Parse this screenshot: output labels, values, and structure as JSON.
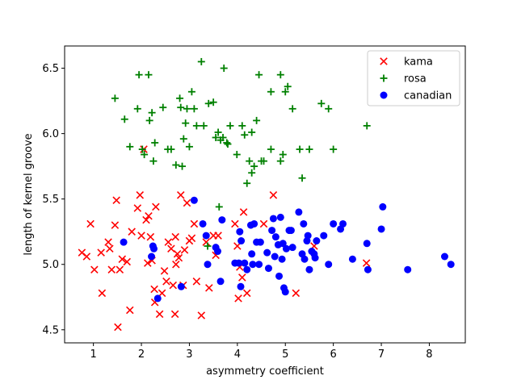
{
  "chart_data": {
    "type": "scatter",
    "title": "",
    "xlabel": "asymmetry coefficient",
    "ylabel": "length of kernel groove",
    "xlim": [
      0.4,
      8.75
    ],
    "ylim": [
      4.4,
      6.67
    ],
    "x_ticks": [
      1,
      2,
      3,
      4,
      5,
      6,
      7,
      8
    ],
    "y_ticks": [
      4.5,
      5.0,
      5.5,
      6.0,
      6.5
    ],
    "grid": false,
    "legend_position": "top-right",
    "series": [
      {
        "name": "kama",
        "marker": "x",
        "color": "#ff0000",
        "points": [
          [
            0.76,
            5.09
          ],
          [
            0.86,
            5.06
          ],
          [
            0.94,
            5.31
          ],
          [
            1.02,
            4.96
          ],
          [
            1.16,
            5.09
          ],
          [
            1.18,
            4.78
          ],
          [
            1.31,
            5.17
          ],
          [
            1.34,
            5.12
          ],
          [
            1.38,
            4.96
          ],
          [
            1.45,
            5.3
          ],
          [
            1.48,
            5.49
          ],
          [
            1.51,
            4.52
          ],
          [
            1.55,
            4.96
          ],
          [
            1.6,
            5.04
          ],
          [
            1.7,
            5.02
          ],
          [
            1.76,
            4.65
          ],
          [
            1.8,
            5.25
          ],
          [
            1.92,
            5.43
          ],
          [
            1.97,
            5.53
          ],
          [
            2.0,
            5.22
          ],
          [
            2.05,
            5.88
          ],
          [
            2.1,
            5.34
          ],
          [
            2.13,
            5.01
          ],
          [
            2.15,
            5.37
          ],
          [
            2.19,
            5.21
          ],
          [
            2.22,
            5.03
          ],
          [
            2.27,
            4.81
          ],
          [
            2.28,
            4.71
          ],
          [
            2.3,
            5.44
          ],
          [
            2.38,
            4.62
          ],
          [
            2.43,
            4.78
          ],
          [
            2.48,
            4.95
          ],
          [
            2.52,
            4.87
          ],
          [
            2.56,
            5.17
          ],
          [
            2.62,
            5.12
          ],
          [
            2.66,
            4.84
          ],
          [
            2.7,
            4.62
          ],
          [
            2.71,
            5.21
          ],
          [
            2.72,
            5.0
          ],
          [
            2.75,
            5.08
          ],
          [
            2.78,
            5.05
          ],
          [
            2.82,
            5.53
          ],
          [
            2.87,
            4.84
          ],
          [
            2.9,
            5.11
          ],
          [
            2.95,
            5.47
          ],
          [
            3.0,
            5.18
          ],
          [
            3.05,
            5.2
          ],
          [
            3.1,
            5.31
          ],
          [
            3.15,
            4.87
          ],
          [
            3.25,
            4.61
          ],
          [
            3.35,
            5.17
          ],
          [
            3.41,
            4.82
          ],
          [
            3.5,
            5.22
          ],
          [
            3.55,
            5.07
          ],
          [
            3.6,
            5.22
          ],
          [
            3.95,
            5.31
          ],
          [
            4.0,
            5.14
          ],
          [
            4.02,
            4.74
          ],
          [
            4.05,
            4.98
          ],
          [
            4.1,
            4.9
          ],
          [
            4.13,
            5.4
          ],
          [
            4.2,
            4.78
          ],
          [
            4.55,
            5.31
          ],
          [
            4.75,
            5.53
          ],
          [
            5.22,
            4.78
          ],
          [
            5.6,
            5.14
          ],
          [
            6.69,
            5.01
          ]
        ]
      },
      {
        "name": "rosa",
        "marker": "+",
        "color": "#008000",
        "points": [
          [
            1.45,
            6.27
          ],
          [
            1.65,
            6.11
          ],
          [
            1.76,
            5.9
          ],
          [
            1.92,
            6.19
          ],
          [
            1.95,
            6.45
          ],
          [
            2.02,
            5.88
          ],
          [
            2.06,
            5.84
          ],
          [
            2.15,
            6.45
          ],
          [
            2.17,
            6.1
          ],
          [
            2.22,
            6.16
          ],
          [
            2.25,
            5.79
          ],
          [
            2.28,
            5.93
          ],
          [
            2.45,
            6.2
          ],
          [
            2.55,
            5.88
          ],
          [
            2.62,
            5.88
          ],
          [
            2.72,
            5.76
          ],
          [
            2.8,
            6.27
          ],
          [
            2.82,
            6.2
          ],
          [
            2.85,
            5.75
          ],
          [
            2.88,
            5.96
          ],
          [
            2.92,
            6.08
          ],
          [
            2.95,
            6.19
          ],
          [
            3.0,
            5.9
          ],
          [
            3.05,
            6.32
          ],
          [
            3.1,
            6.19
          ],
          [
            3.15,
            6.06
          ],
          [
            3.25,
            6.55
          ],
          [
            3.3,
            6.06
          ],
          [
            3.4,
            6.23
          ],
          [
            3.5,
            6.24
          ],
          [
            3.55,
            5.97
          ],
          [
            3.6,
            6.01
          ],
          [
            3.65,
            5.95
          ],
          [
            3.7,
            5.97
          ],
          [
            3.72,
            6.5
          ],
          [
            3.78,
            5.93
          ],
          [
            3.8,
            5.92
          ],
          [
            3.85,
            6.06
          ],
          [
            3.99,
            5.84
          ],
          [
            4.1,
            6.06
          ],
          [
            4.15,
            5.99
          ],
          [
            4.2,
            5.62
          ],
          [
            4.25,
            5.79
          ],
          [
            4.3,
            6.01
          ],
          [
            4.3,
            5.7
          ],
          [
            4.35,
            5.75
          ],
          [
            4.4,
            6.1
          ],
          [
            4.45,
            6.45
          ],
          [
            4.5,
            5.79
          ],
          [
            4.55,
            5.79
          ],
          [
            4.7,
            6.32
          ],
          [
            4.7,
            5.88
          ],
          [
            4.9,
            5.79
          ],
          [
            4.9,
            6.45
          ],
          [
            4.95,
            5.84
          ],
          [
            5.0,
            6.32
          ],
          [
            5.05,
            6.36
          ],
          [
            5.15,
            6.19
          ],
          [
            5.3,
            5.88
          ],
          [
            5.35,
            5.66
          ],
          [
            5.5,
            5.88
          ],
          [
            5.75,
            6.23
          ],
          [
            5.9,
            6.19
          ],
          [
            6.0,
            5.88
          ],
          [
            6.7,
            6.06
          ],
          [
            3.38,
            5.14
          ],
          [
            3.62,
            5.44
          ]
        ]
      },
      {
        "name": "canadian",
        "marker": "o",
        "color": "#0000ff",
        "points": [
          [
            1.63,
            5.17
          ],
          [
            2.21,
            5.06
          ],
          [
            2.24,
            5.14
          ],
          [
            2.26,
            5.12
          ],
          [
            2.34,
            4.74
          ],
          [
            2.83,
            4.83
          ],
          [
            3.1,
            5.49
          ],
          [
            3.28,
            5.31
          ],
          [
            3.35,
            5.22
          ],
          [
            3.38,
            5.0
          ],
          [
            3.55,
            5.13
          ],
          [
            3.59,
            5.1
          ],
          [
            3.65,
            4.87
          ],
          [
            3.68,
            5.34
          ],
          [
            3.95,
            5.01
          ],
          [
            4.03,
            5.01
          ],
          [
            4.05,
            5.25
          ],
          [
            4.07,
            4.83
          ],
          [
            4.08,
            5.18
          ],
          [
            4.15,
            5.01
          ],
          [
            4.2,
            4.96
          ],
          [
            4.28,
            5.3
          ],
          [
            4.3,
            5.08
          ],
          [
            4.32,
            5.0
          ],
          [
            4.35,
            5.31
          ],
          [
            4.4,
            5.17
          ],
          [
            4.45,
            5.0
          ],
          [
            4.48,
            5.17
          ],
          [
            4.62,
            5.09
          ],
          [
            4.65,
            4.97
          ],
          [
            4.72,
            5.26
          ],
          [
            4.75,
            5.35
          ],
          [
            4.78,
            5.06
          ],
          [
            4.8,
            5.21
          ],
          [
            4.85,
            5.15
          ],
          [
            4.87,
            4.91
          ],
          [
            4.9,
            5.36
          ],
          [
            4.93,
            5.04
          ],
          [
            4.95,
            5.16
          ],
          [
            4.97,
            4.82
          ],
          [
            5.0,
            4.79
          ],
          [
            5.02,
            5.12
          ],
          [
            5.08,
            5.26
          ],
          [
            5.12,
            5.26
          ],
          [
            5.15,
            5.13
          ],
          [
            5.28,
            5.4
          ],
          [
            5.35,
            5.08
          ],
          [
            5.38,
            5.31
          ],
          [
            5.4,
            5.04
          ],
          [
            5.45,
            5.18
          ],
          [
            5.47,
            5.22
          ],
          [
            5.5,
            4.96
          ],
          [
            5.55,
            5.1
          ],
          [
            5.6,
            5.08
          ],
          [
            5.62,
            5.05
          ],
          [
            5.65,
            5.18
          ],
          [
            5.8,
            5.22
          ],
          [
            5.9,
            5.0
          ],
          [
            6.0,
            5.31
          ],
          [
            6.15,
            5.27
          ],
          [
            6.2,
            5.31
          ],
          [
            6.4,
            5.04
          ],
          [
            6.7,
            5.16
          ],
          [
            6.72,
            4.96
          ],
          [
            7.0,
            5.27
          ],
          [
            7.03,
            5.44
          ],
          [
            7.55,
            4.96
          ],
          [
            8.32,
            5.06
          ],
          [
            8.45,
            5.0
          ]
        ]
      }
    ]
  }
}
